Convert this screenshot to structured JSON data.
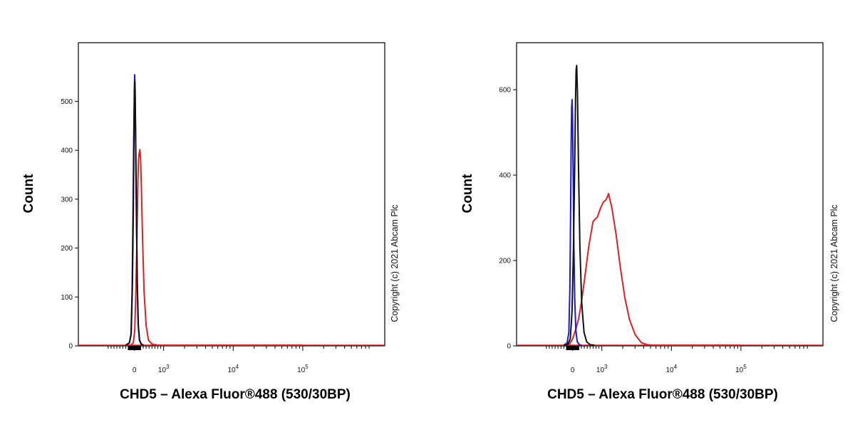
{
  "chart_data": [
    {
      "type": "line",
      "xlabel": "CHD5 – Alexa Fluor®488 (530/30BP)",
      "ylabel": "Count",
      "x_scale": "biexponential",
      "y_ticks": [
        0,
        100,
        200,
        300,
        400,
        500
      ],
      "ylim": [
        0,
        620
      ],
      "x_ticks": [
        {
          "value": 0,
          "base": "0",
          "exp": ""
        },
        {
          "value": 1000,
          "base": "10",
          "exp": "3"
        },
        {
          "value": 10000,
          "base": "10",
          "exp": "4"
        },
        {
          "value": 100000,
          "base": "10",
          "exp": "5"
        }
      ],
      "copyright": "Copyright (c) 2021 Abcam Plc",
      "series": [
        {
          "color": "#1a1ad6",
          "points": [
            [
              -300,
              0
            ],
            [
              -180,
              4
            ],
            [
              -120,
              20
            ],
            [
              -80,
              110
            ],
            [
              -50,
              260
            ],
            [
              -25,
              420
            ],
            [
              -5,
              520
            ],
            [
              8,
              553
            ],
            [
              20,
              530
            ],
            [
              40,
              430
            ],
            [
              65,
              270
            ],
            [
              95,
              120
            ],
            [
              130,
              40
            ],
            [
              170,
              10
            ],
            [
              230,
              2
            ],
            [
              300,
              0
            ]
          ]
        },
        {
          "color": "#111111",
          "points": [
            [
              -300,
              0
            ],
            [
              -170,
              5
            ],
            [
              -110,
              25
            ],
            [
              -70,
              120
            ],
            [
              -40,
              270
            ],
            [
              -18,
              430
            ],
            [
              0,
              515
            ],
            [
              12,
              540
            ],
            [
              24,
              515
            ],
            [
              45,
              410
            ],
            [
              70,
              260
            ],
            [
              100,
              120
            ],
            [
              135,
              40
            ],
            [
              175,
              10
            ],
            [
              240,
              2
            ],
            [
              320,
              0
            ]
          ]
        },
        {
          "color": "#e02020",
          "points": [
            [
              -300,
              0
            ],
            [
              -120,
              0
            ],
            [
              -40,
              5
            ],
            [
              10,
              30
            ],
            [
              50,
              110
            ],
            [
              90,
              230
            ],
            [
              120,
              340
            ],
            [
              140,
              380
            ],
            [
              160,
              390
            ],
            [
              185,
              400
            ],
            [
              210,
              380
            ],
            [
              240,
              320
            ],
            [
              280,
              210
            ],
            [
              330,
              110
            ],
            [
              400,
              40
            ],
            [
              480,
              10
            ],
            [
              600,
              2
            ],
            [
              800,
              0
            ],
            [
              100000,
              0
            ]
          ]
        }
      ]
    },
    {
      "type": "line",
      "xlabel": "CHD5 – Alexa Fluor®488 (530/30BP)",
      "ylabel": "Count",
      "x_scale": "biexponential",
      "y_ticks": [
        0,
        200,
        400,
        600
      ],
      "ylim": [
        0,
        710
      ],
      "x_ticks": [
        {
          "value": 0,
          "base": "0",
          "exp": ""
        },
        {
          "value": 1000,
          "base": "10",
          "exp": "3"
        },
        {
          "value": 10000,
          "base": "10",
          "exp": "4"
        },
        {
          "value": 100000,
          "base": "10",
          "exp": "5"
        }
      ],
      "copyright": "Copyright (c) 2021 Abcam Plc",
      "series": [
        {
          "color": "#1a1ad6",
          "points": [
            [
              -300,
              0
            ],
            [
              -190,
              5
            ],
            [
              -130,
              30
            ],
            [
              -95,
              130
            ],
            [
              -70,
              300
            ],
            [
              -50,
              470
            ],
            [
              -35,
              555
            ],
            [
              -20,
              575
            ],
            [
              -5,
              540
            ],
            [
              15,
              420
            ],
            [
              40,
              250
            ],
            [
              70,
              110
            ],
            [
              110,
              35
            ],
            [
              160,
              8
            ],
            [
              230,
              1
            ],
            [
              300,
              0
            ]
          ]
        },
        {
          "color": "#111111",
          "points": [
            [
              -300,
              0
            ],
            [
              -160,
              2
            ],
            [
              -80,
              15
            ],
            [
              -20,
              80
            ],
            [
              30,
              230
            ],
            [
              70,
              420
            ],
            [
              100,
              580
            ],
            [
              120,
              645
            ],
            [
              140,
              655
            ],
            [
              165,
              590
            ],
            [
              200,
              420
            ],
            [
              250,
              230
            ],
            [
              310,
              100
            ],
            [
              390,
              30
            ],
            [
              480,
              8
            ],
            [
              600,
              1
            ],
            [
              750,
              0
            ]
          ]
        },
        {
          "color": "#e02020",
          "points": [
            [
              -300,
              0
            ],
            [
              -100,
              3
            ],
            [
              0,
              15
            ],
            [
              100,
              35
            ],
            [
              200,
              60
            ],
            [
              300,
              100
            ],
            [
              420,
              160
            ],
            [
              550,
              230
            ],
            [
              700,
              290
            ],
            [
              850,
              300
            ],
            [
              950,
              320
            ],
            [
              1050,
              335
            ],
            [
              1150,
              340
            ],
            [
              1250,
              355
            ],
            [
              1400,
              320
            ],
            [
              1600,
              260
            ],
            [
              1850,
              180
            ],
            [
              2150,
              110
            ],
            [
              2500,
              60
            ],
            [
              3000,
              25
            ],
            [
              3700,
              6
            ],
            [
              4500,
              1
            ],
            [
              5500,
              0
            ],
            [
              100000,
              0
            ]
          ]
        }
      ]
    }
  ]
}
